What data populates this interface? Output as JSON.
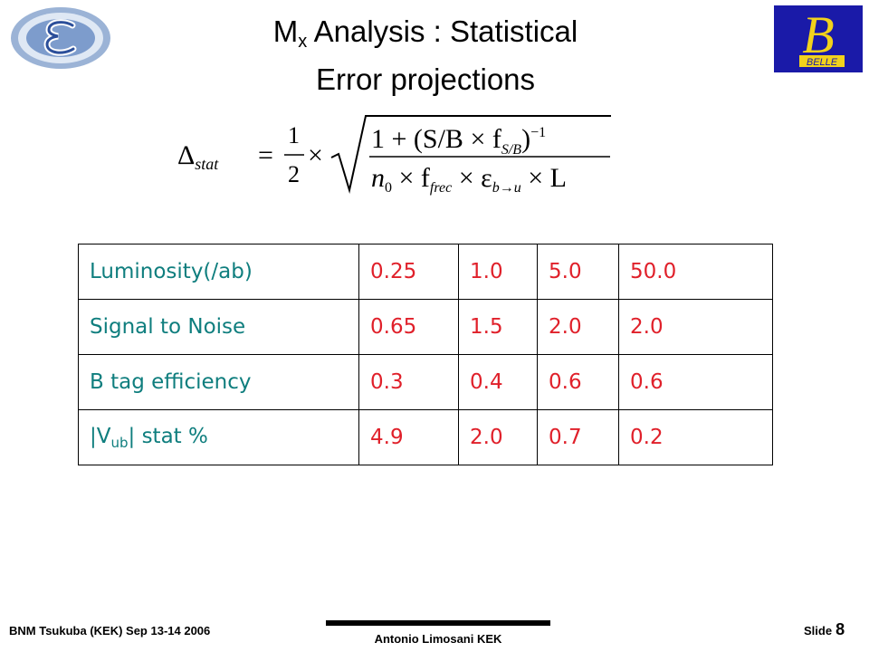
{
  "slide": {
    "title_part1": "M",
    "title_sub": "x",
    "title_part2": " Analysis : Statistical",
    "title_line2": "Error projections"
  },
  "formula": {
    "lhs": "Δ",
    "lhs_sub": "stat",
    "equals": "=",
    "half_num": "1",
    "half_den": "2",
    "times": "×",
    "num_text": "1 + (S/B × f",
    "num_sub": "S/B",
    "num_close": ")",
    "num_sup": "−1",
    "den_n": "n",
    "den_n_sub": "0",
    "den_mid": " × f",
    "den_f_sub": "frec",
    "den_eps": " × ε",
    "den_eps_sub": "b→u",
    "den_L": " × L"
  },
  "table": {
    "rows": [
      {
        "label": "Luminosity(/ab)",
        "values": [
          "0.25",
          "1.0",
          "5.0",
          "50.0"
        ]
      },
      {
        "label": "Signal to Noise",
        "values": [
          "0.65",
          "1.5",
          "2.0",
          "2.0"
        ]
      },
      {
        "label": "B tag efficiency",
        "values": [
          "0.3",
          "0.4",
          "0.6",
          "0.6"
        ]
      },
      {
        "label_pre": "|V",
        "label_sub": "ub",
        "label_post": "| stat %",
        "values": [
          "4.9",
          "2.0",
          "0.7",
          "0.2"
        ]
      }
    ]
  },
  "logos": {
    "belle_letter": "B",
    "belle_text": "BELLE"
  },
  "footer": {
    "left": "BNM Tsukuba (KEK)  Sep 13-14 2006",
    "center": "Antonio Limosani KEK",
    "slide_label": "Slide",
    "slide_number": "8"
  },
  "colors": {
    "label_teal": "#0f7e7e",
    "value_red": "#e0202a",
    "belle_blue": "#1a1aa8",
    "belle_yellow": "#f2d21c"
  }
}
